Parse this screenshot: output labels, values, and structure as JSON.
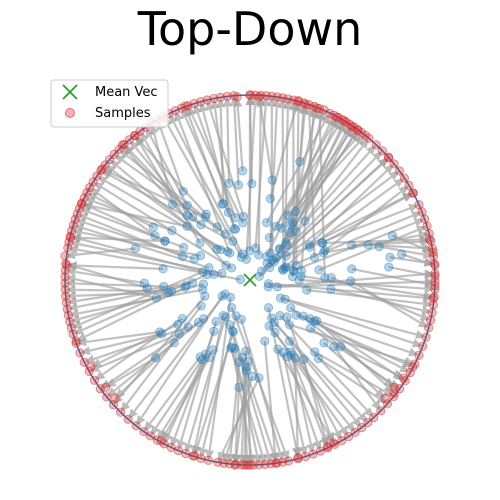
{
  "chart_data": {
    "type": "scatter",
    "title": "Top-Down",
    "xlabel": "",
    "ylabel": "",
    "xlim": [
      -1.1,
      1.1
    ],
    "ylim": [
      -1.1,
      1.1
    ],
    "axes_visible": false,
    "grid": false,
    "legend_position": "top-left",
    "legend": [
      {
        "label": "Mean Vec",
        "marker": "x",
        "color": "#2ca02c"
      },
      {
        "label": "Samples",
        "marker": "o",
        "color": "#d62728"
      }
    ],
    "unit_circle": {
      "radius": 1.0,
      "color": "#1f77b4"
    },
    "mean_vec": {
      "x": 0.0,
      "y": 0.0
    },
    "colors": {
      "circle": "#1f77b4",
      "arrow": "#a0a0a0",
      "inner_point": "#1f77b4",
      "sample": "#d62728",
      "mean": "#2ca02c"
    },
    "pairs": [
      {
        "inner": [
          -0.04,
          0.59
        ],
        "tip": [
          -0.07,
          0.99
        ]
      },
      {
        "inner": [
          0.01,
          0.52
        ],
        "tip": [
          0.0,
          1.0
        ]
      },
      {
        "inner": [
          0.12,
          0.54
        ],
        "tip": [
          0.05,
          0.99
        ]
      },
      {
        "inner": [
          0.11,
          0.44
        ],
        "tip": [
          0.26,
          0.97
        ]
      },
      {
        "inner": [
          0.27,
          0.64
        ],
        "tip": [
          0.3,
          0.95
        ]
      },
      {
        "inner": [
          0.22,
          0.3
        ],
        "tip": [
          0.36,
          0.93
        ]
      },
      {
        "inner": [
          0.23,
          0.31
        ],
        "tip": [
          0.4,
          0.92
        ]
      },
      {
        "inner": [
          0.09,
          0.31
        ],
        "tip": [
          0.43,
          0.9
        ]
      },
      {
        "inner": [
          0.14,
          0.29
        ],
        "tip": [
          0.47,
          0.88
        ]
      },
      {
        "inner": [
          0.2,
          0.19
        ],
        "tip": [
          0.51,
          0.86
        ]
      },
      {
        "inner": [
          0.25,
          0.26
        ],
        "tip": [
          0.55,
          0.83
        ]
      },
      {
        "inner": [
          0.16,
          0.17
        ],
        "tip": [
          0.58,
          0.81
        ]
      },
      {
        "inner": [
          0.05,
          0.02
        ],
        "tip": [
          0.75,
          0.66
        ]
      },
      {
        "inner": [
          0.32,
          0.19
        ],
        "tip": [
          0.88,
          0.47
        ]
      },
      {
        "inner": [
          0.39,
          0.2
        ],
        "tip": [
          0.97,
          0.22
        ]
      },
      {
        "inner": [
          0.77,
          0.24
        ],
        "tip": [
          0.99,
          0.15
        ]
      },
      {
        "inner": [
          0.82,
          0.14
        ],
        "tip": [
          1.0,
          0.08
        ]
      },
      {
        "inner": [
          0.75,
          0.07
        ],
        "tip": [
          1.0,
          0.02
        ]
      },
      {
        "inner": [
          0.55,
          0.06
        ],
        "tip": [
          1.0,
          -0.03
        ]
      },
      {
        "inner": [
          0.1,
          -0.02
        ],
        "tip": [
          0.99,
          -0.1
        ]
      },
      {
        "inner": [
          0.25,
          -0.19
        ],
        "tip": [
          0.88,
          -0.47
        ]
      },
      {
        "inner": [
          0.49,
          -0.36
        ],
        "tip": [
          0.83,
          -0.53
        ]
      },
      {
        "inner": [
          0.22,
          -0.15
        ],
        "tip": [
          0.78,
          -0.58
        ]
      },
      {
        "inner": [
          0.36,
          -0.22
        ],
        "tip": [
          0.78,
          -0.61
        ]
      },
      {
        "inner": [
          0.4,
          -0.34
        ],
        "tip": [
          0.73,
          -0.64
        ]
      },
      {
        "inner": [
          0.2,
          -0.2
        ],
        "tip": [
          0.45,
          -0.88
        ]
      },
      {
        "inner": [
          0.29,
          -0.43
        ],
        "tip": [
          0.42,
          -0.9
        ]
      },
      {
        "inner": [
          0.1,
          -0.15
        ],
        "tip": [
          0.26,
          -0.96
        ]
      },
      {
        "inner": [
          0.08,
          -0.33
        ],
        "tip": [
          0.14,
          -0.99
        ]
      },
      {
        "inner": [
          -0.01,
          -0.44
        ],
        "tip": [
          0.0,
          -1.0
        ]
      },
      {
        "inner": [
          -0.02,
          -0.49
        ],
        "tip": [
          -0.03,
          -1.0
        ]
      },
      {
        "inner": [
          -0.06,
          -0.58
        ],
        "tip": [
          -0.08,
          -1.0
        ]
      },
      {
        "inner": [
          -0.22,
          -0.42
        ],
        "tip": [
          -0.48,
          -0.87
        ]
      },
      {
        "inner": [
          -0.09,
          -0.28
        ],
        "tip": [
          -0.3,
          -0.95
        ]
      },
      {
        "inner": [
          -0.41,
          -0.34
        ],
        "tip": [
          -0.73,
          -0.64
        ]
      },
      {
        "inner": [
          -0.51,
          -0.42
        ],
        "tip": [
          -0.78,
          -0.58
        ]
      },
      {
        "inner": [
          -0.39,
          -0.24
        ],
        "tip": [
          -0.86,
          -0.47
        ]
      },
      {
        "inner": [
          -0.35,
          -0.04
        ],
        "tip": [
          -0.94,
          -0.33
        ]
      },
      {
        "inner": [
          -0.47,
          0.06
        ],
        "tip": [
          -0.99,
          0.08
        ]
      },
      {
        "inner": [
          -0.62,
          0.17
        ],
        "tip": [
          -1.0,
          0.13
        ]
      },
      {
        "inner": [
          -0.46,
          0.21
        ],
        "tip": [
          -0.97,
          0.23
        ]
      },
      {
        "inner": [
          -0.34,
          0.29
        ],
        "tip": [
          -0.91,
          0.41
        ]
      },
      {
        "inner": [
          -0.24,
          0.34
        ],
        "tip": [
          -0.8,
          0.6
        ]
      },
      {
        "inner": [
          -0.13,
          0.08
        ],
        "tip": [
          -0.69,
          0.73
        ]
      },
      {
        "inner": [
          -0.27,
          0.2
        ],
        "tip": [
          -0.62,
          0.78
        ]
      },
      {
        "inner": [
          -0.15,
          0.41
        ],
        "tip": [
          -0.35,
          0.94
        ]
      }
    ],
    "fans": [
      {
        "tip_from_deg": 90,
        "tip_to_deg": 68,
        "count": 14,
        "inner_from": [
          0.0,
          0.15
        ],
        "inner_to": [
          0.35,
          0.05
        ]
      },
      {
        "tip_from_deg": 63,
        "tip_to_deg": 50,
        "count": 10,
        "inner_from": [
          0.1,
          0.12
        ],
        "inner_to": [
          0.3,
          0.35
        ]
      },
      {
        "tip_from_deg": 47,
        "tip_to_deg": 28,
        "count": 8,
        "inner_from": [
          0.05,
          0.06
        ],
        "inner_to": [
          0.4,
          0.2
        ]
      },
      {
        "tip_from_deg": 24,
        "tip_to_deg": 5,
        "count": 9,
        "inner_from": [
          0.1,
          0.05
        ],
        "inner_to": [
          0.75,
          0.18
        ]
      },
      {
        "tip_from_deg": 2,
        "tip_to_deg": -15,
        "count": 8,
        "inner_from": [
          0.12,
          -0.02
        ],
        "inner_to": [
          0.55,
          -0.05
        ]
      },
      {
        "tip_from_deg": -18,
        "tip_to_deg": -45,
        "count": 10,
        "inner_from": [
          0.18,
          -0.1
        ],
        "inner_to": [
          0.45,
          -0.4
        ]
      },
      {
        "tip_from_deg": -48,
        "tip_to_deg": -75,
        "count": 12,
        "inner_from": [
          0.12,
          -0.15
        ],
        "inner_to": [
          0.25,
          -0.45
        ]
      },
      {
        "tip_from_deg": -78,
        "tip_to_deg": -100,
        "count": 13,
        "inner_from": [
          -0.08,
          -0.2
        ],
        "inner_to": [
          0.0,
          -0.55
        ]
      },
      {
        "tip_from_deg": -103,
        "tip_to_deg": -125,
        "count": 10,
        "inner_from": [
          -0.1,
          -0.15
        ],
        "inner_to": [
          -0.3,
          -0.45
        ]
      },
      {
        "tip_from_deg": -128,
        "tip_to_deg": -160,
        "count": 11,
        "inner_from": [
          -0.15,
          -0.08
        ],
        "inner_to": [
          -0.45,
          -0.3
        ]
      },
      {
        "tip_from_deg": -163,
        "tip_to_deg": -185,
        "count": 12,
        "inner_from": [
          -0.2,
          0.0
        ],
        "inner_to": [
          -0.55,
          -0.05
        ]
      },
      {
        "tip_from_deg": 170,
        "tip_to_deg": 150,
        "count": 12,
        "inner_from": [
          -0.1,
          0.05
        ],
        "inner_to": [
          -0.55,
          0.25
        ]
      },
      {
        "tip_from_deg": 148,
        "tip_to_deg": 120,
        "count": 14,
        "inner_from": [
          -0.05,
          0.1
        ],
        "inner_to": [
          -0.4,
          0.45
        ]
      },
      {
        "tip_from_deg": 118,
        "tip_to_deg": 95,
        "count": 12,
        "inner_from": [
          -0.05,
          0.12
        ],
        "inner_to": [
          -0.1,
          0.5
        ]
      }
    ]
  }
}
